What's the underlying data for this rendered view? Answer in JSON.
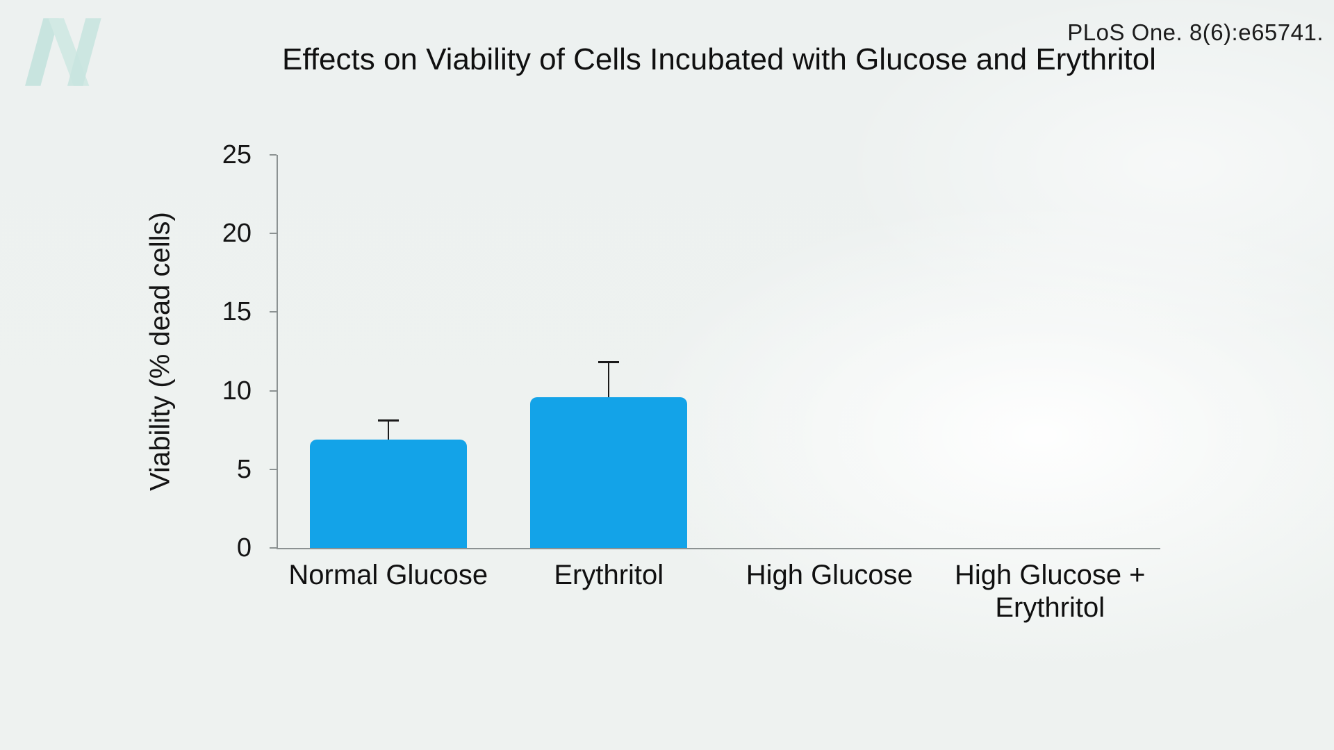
{
  "citation": "PLoS One. 8(6):e65741.",
  "logo": {
    "name": "nutritionfacts-n-logo",
    "color": "#c8e4df"
  },
  "colors": {
    "background": "#edf1f0",
    "bar": "#13a3e8",
    "axis": "#8c9292",
    "text": "#141414",
    "error_bar": "#1a1a1a"
  },
  "chart_data": {
    "type": "bar",
    "title": "Effects on Viability of Cells Incubated with Glucose and Erythritol",
    "categories": [
      "Normal Glucose",
      "Erythritol",
      "High Glucose",
      "High Glucose + Erythritol"
    ],
    "values": [
      6.9,
      9.6,
      0,
      0
    ],
    "error_plus": [
      1.2,
      2.2,
      0,
      0
    ],
    "xlabel": "",
    "ylabel": "Viability (% dead cells)",
    "ylim": [
      0,
      25
    ],
    "yticks": [
      0,
      5,
      10,
      15,
      20,
      25
    ],
    "grid": false,
    "legend": false,
    "bar_color": "#13a3e8"
  }
}
